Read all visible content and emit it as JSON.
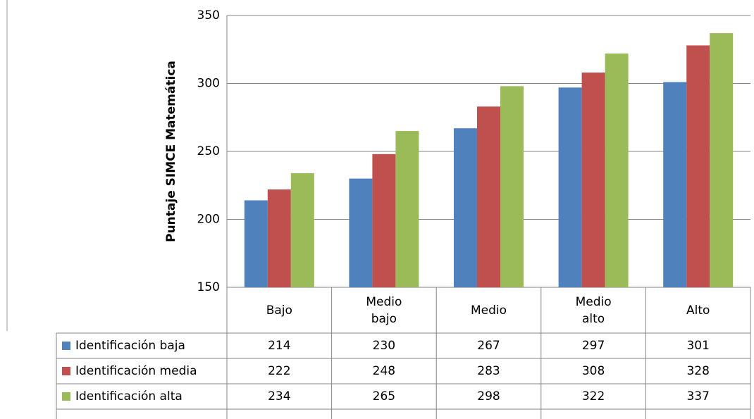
{
  "chart_data": {
    "type": "bar",
    "ylabel": "Puntaje SIMCE Matemática",
    "categories": [
      "Bajo",
      "Medio bajo",
      "Medio",
      "Medio alto",
      "Alto"
    ],
    "series": [
      {
        "name": "Identificación baja",
        "color": "#4f81bd",
        "values": [
          214,
          230,
          267,
          297,
          301
        ]
      },
      {
        "name": "Identificación media",
        "color": "#c0504d",
        "values": [
          222,
          248,
          283,
          308,
          328
        ]
      },
      {
        "name": "Identificación alta",
        "color": "#9bbb59",
        "values": [
          234,
          265,
          298,
          322,
          337
        ]
      }
    ],
    "ylim": [
      150,
      350
    ],
    "yticks": [
      150,
      200,
      250,
      300,
      350
    ],
    "grid": true,
    "data_table": true
  }
}
